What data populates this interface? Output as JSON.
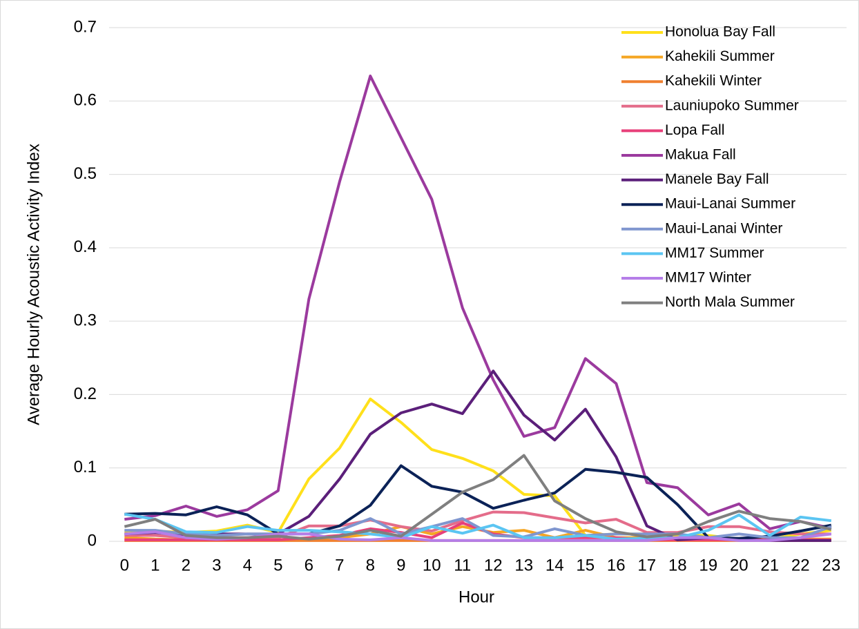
{
  "chart_data": {
    "type": "line",
    "x_label": "Hour",
    "y_label": "Average Hourly Acoustic Activity Index",
    "categories": [
      "0",
      "1",
      "2",
      "3",
      "4",
      "5",
      "6",
      "7",
      "8",
      "9",
      "10",
      "11",
      "12",
      "13",
      "14",
      "15",
      "16",
      "17",
      "18",
      "19",
      "20",
      "21",
      "22",
      "23"
    ],
    "ylim": [
      0,
      0.7
    ],
    "yticks": [
      {
        "value": 0,
        "label": "0"
      },
      0.1,
      0.2,
      0.3,
      0.4,
      0.5,
      0.6,
      0.7
    ],
    "grid": true,
    "legend": "top-right",
    "series": [
      {
        "name": "Honolua Bay Fall",
        "color": "#FFE01B",
        "values": [
          0.013,
          0.014,
          0.012,
          0.014,
          0.022,
          0.012,
          0.085,
          0.127,
          0.194,
          0.162,
          0.125,
          0.113,
          0.096,
          0.064,
          0.062,
          0.008,
          0.01,
          0.01,
          0.008,
          0.008,
          0.003,
          0.003,
          0.01,
          0.015
        ]
      },
      {
        "name": "Kahekili Summer",
        "color": "#F5A623",
        "values": [
          0.005,
          0.003,
          0.002,
          0.002,
          0.002,
          0.002,
          0.002,
          0.005,
          0.01,
          0.02,
          0.01,
          0.02,
          0.012,
          0.015,
          0.005,
          0.015,
          0.005,
          0.005,
          0.005,
          0.003,
          0.003,
          0.003,
          0.003,
          0.003
        ]
      },
      {
        "name": "Kahekili Winter",
        "color": "#F08030",
        "values": [
          0.001,
          0.001,
          0.001,
          0.001,
          0.001,
          0.001,
          0.001,
          0.001,
          0.001,
          0.001,
          0.001,
          0.001,
          0.001,
          0.001,
          0.001,
          0.001,
          0.001,
          0.001,
          0.001,
          0.001,
          0.001,
          0.001,
          0.001,
          0.001
        ]
      },
      {
        "name": "Launiupoko Summer",
        "color": "#E46C8A",
        "values": [
          0.008,
          0.008,
          0.005,
          0.005,
          0.005,
          0.005,
          0.021,
          0.021,
          0.029,
          0.02,
          0.014,
          0.028,
          0.04,
          0.039,
          0.032,
          0.025,
          0.03,
          0.012,
          0.012,
          0.02,
          0.02,
          0.013,
          0.01,
          0.01
        ]
      },
      {
        "name": "Lopa Fall",
        "color": "#E8407A",
        "values": [
          0.002,
          0.002,
          0.002,
          0.002,
          0.002,
          0.002,
          0.005,
          0.008,
          0.017,
          0.012,
          0.005,
          0.025,
          0.01,
          0.005,
          0.005,
          0.005,
          0.005,
          0.002,
          0.002,
          0.002,
          0.002,
          0.002,
          0.002,
          0.002
        ]
      },
      {
        "name": "Makua Fall",
        "color": "#9B3A9E",
        "values": [
          0.03,
          0.035,
          0.048,
          0.034,
          0.043,
          0.069,
          0.33,
          0.49,
          0.634,
          0.55,
          0.466,
          0.318,
          0.22,
          0.143,
          0.155,
          0.249,
          0.215,
          0.08,
          0.073,
          0.036,
          0.051,
          0.017,
          0.027,
          0.018
        ]
      },
      {
        "name": "Manele Bay Fall",
        "color": "#5B1F7A",
        "values": [
          0.01,
          0.012,
          0.008,
          0.01,
          0.01,
          0.01,
          0.034,
          0.085,
          0.146,
          0.175,
          0.187,
          0.174,
          0.232,
          0.172,
          0.138,
          0.18,
          0.115,
          0.021,
          0.002,
          0.005,
          0.002,
          0.001,
          0.001,
          0.001
        ]
      },
      {
        "name": "Maui-Lanai Summer",
        "color": "#0B2257",
        "values": [
          0.037,
          0.038,
          0.036,
          0.047,
          0.036,
          0.01,
          0.01,
          0.021,
          0.049,
          0.103,
          0.075,
          0.067,
          0.045,
          0.056,
          0.066,
          0.098,
          0.094,
          0.087,
          0.05,
          0.005,
          0.004,
          0.007,
          0.014,
          0.022
        ]
      },
      {
        "name": "Maui-Lanai Winter",
        "color": "#7F96CF",
        "values": [
          0.015,
          0.015,
          0.01,
          0.008,
          0.01,
          0.01,
          0.01,
          0.015,
          0.031,
          0.01,
          0.02,
          0.031,
          0.008,
          0.006,
          0.017,
          0.008,
          0.01,
          0.01,
          0.01,
          0.005,
          0.01,
          0.005,
          0.005,
          0.02
        ]
      },
      {
        "name": "MM17 Summer",
        "color": "#5BC5F2",
        "values": [
          0.037,
          0.03,
          0.013,
          0.012,
          0.02,
          0.015,
          0.015,
          0.013,
          0.01,
          0.005,
          0.02,
          0.011,
          0.022,
          0.005,
          0.005,
          0.008,
          0.003,
          0.004,
          0.005,
          0.015,
          0.036,
          0.008,
          0.033,
          0.028
        ]
      },
      {
        "name": "MM17 Winter",
        "color": "#B57EE8",
        "values": [
          0.01,
          0.013,
          0.005,
          0.003,
          0.005,
          0.01,
          0.01,
          0.003,
          0.002,
          0.005,
          0.001,
          0.001,
          0.001,
          0.001,
          0.001,
          0.001,
          0.001,
          0.001,
          0.005,
          0.005,
          0.001,
          0.001,
          0.005,
          0.01
        ]
      },
      {
        "name": "North Mala Summer",
        "color": "#7F7F7F",
        "values": [
          0.02,
          0.03,
          0.008,
          0.005,
          0.005,
          0.007,
          0.003,
          0.007,
          0.015,
          0.007,
          0.037,
          0.067,
          0.084,
          0.117,
          0.055,
          0.031,
          0.013,
          0.006,
          0.01,
          0.027,
          0.041,
          0.031,
          0.027,
          0.016
        ]
      }
    ]
  }
}
